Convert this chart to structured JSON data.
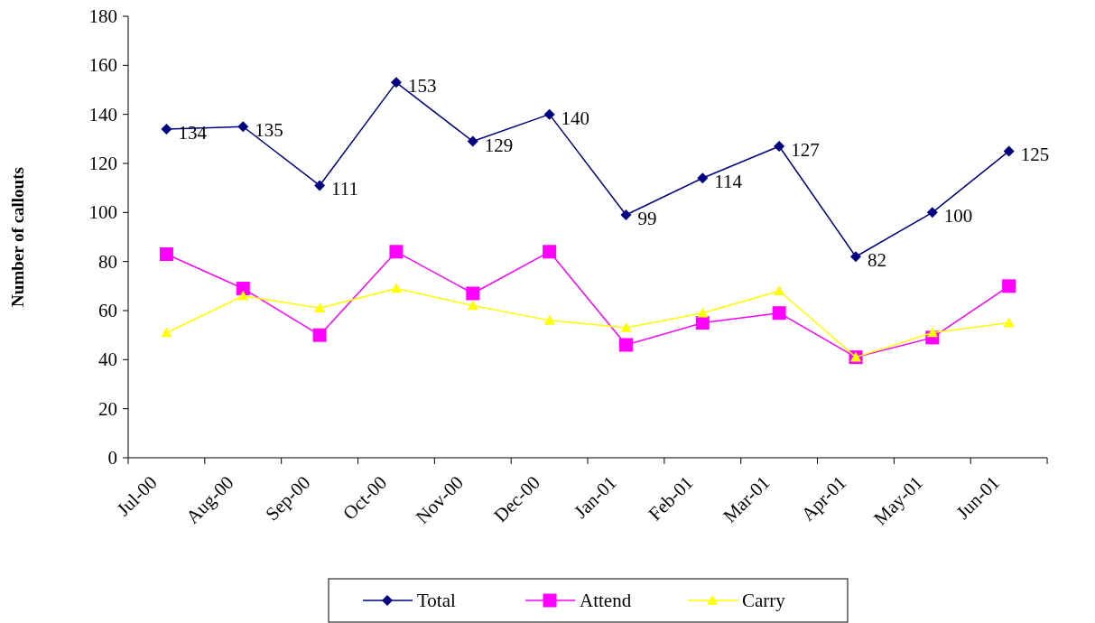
{
  "chart_data": {
    "type": "line",
    "ylabel": "Number of callouts",
    "categories": [
      "Jul-00",
      "Aug-00",
      "Sep-00",
      "Oct-00",
      "Nov-00",
      "Dec-00",
      "Jan-01",
      "Feb-01",
      "Mar-01",
      "Apr-01",
      "May-01",
      "Jun-01"
    ],
    "series": [
      {
        "name": "Total",
        "color": "#000080",
        "marker": "diamond",
        "values": [
          134,
          135,
          111,
          153,
          129,
          140,
          99,
          114,
          127,
          82,
          100,
          125
        ],
        "value_labels": [
          "134",
          "135",
          "111",
          "153",
          "129",
          "140",
          "99",
          "114",
          "127",
          "82",
          "100",
          "125"
        ]
      },
      {
        "name": "Attend",
        "color": "#ff00ff",
        "marker": "square",
        "values": [
          83,
          69,
          50,
          84,
          67,
          84,
          46,
          55,
          59,
          41,
          49,
          70
        ]
      },
      {
        "name": "Carry",
        "color": "#ffff00",
        "marker": "triangle",
        "values": [
          51,
          66,
          61,
          69,
          62,
          56,
          53,
          59,
          68,
          41,
          51,
          55
        ]
      }
    ],
    "ylim": [
      0,
      180
    ],
    "yticks": [
      0,
      20,
      40,
      60,
      80,
      100,
      120,
      140,
      160,
      180
    ],
    "grid": false,
    "legend": "bottom"
  }
}
